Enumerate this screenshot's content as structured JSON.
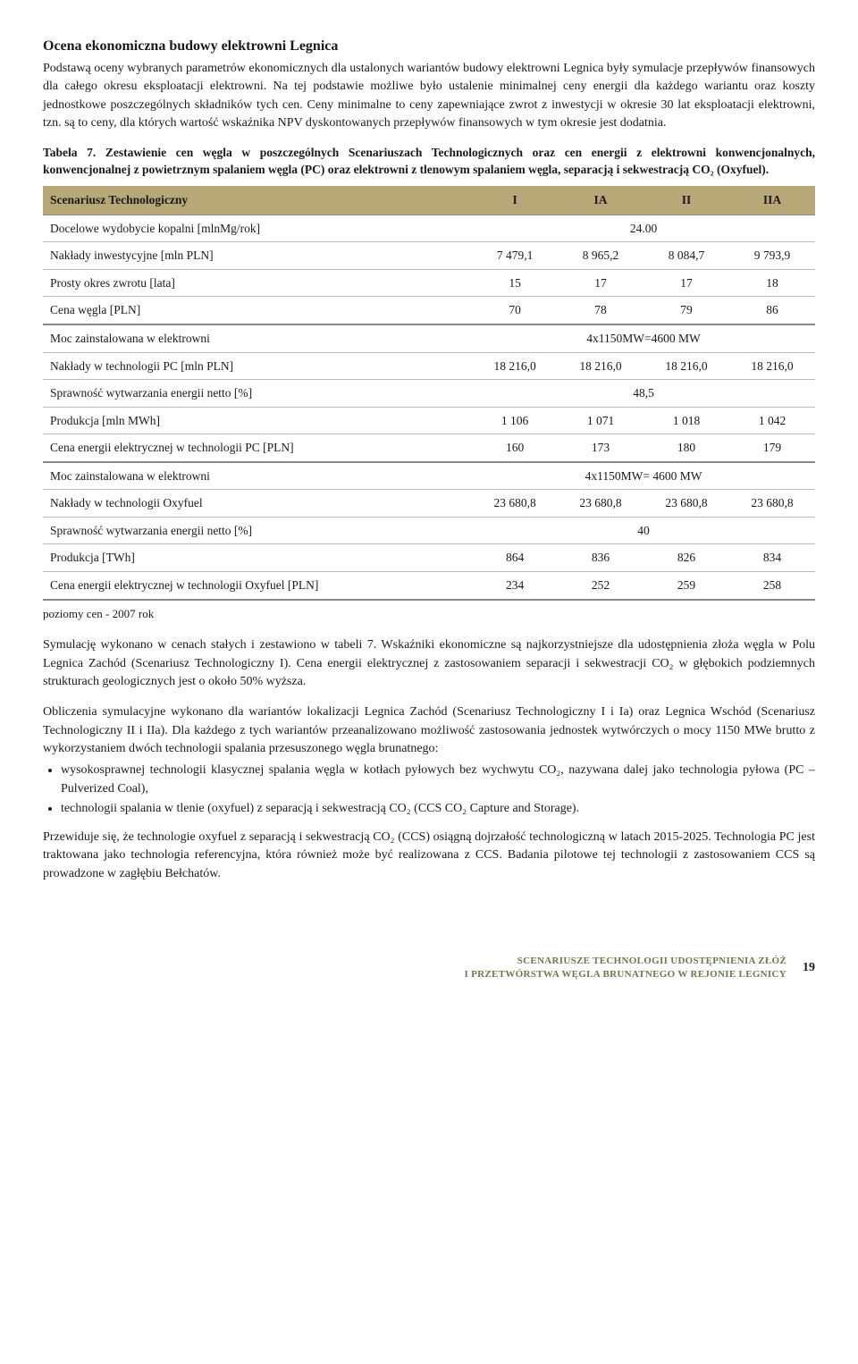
{
  "section": {
    "title": "Ocena ekonomiczna budowy elektrowni Legnica",
    "para1": "Podstawą oceny wybranych parametrów ekonomicznych dla ustalonych wariantów budowy elektrowni Legnica były symulacje przepływów finansowych dla całego okresu eksploatacji elektrowni. Na tej podstawie możliwe było ustalenie minimalnej ceny energii dla każdego wariantu oraz koszty jednostkowe poszczególnych składników tych cen. Ceny minimalne to ceny zapewniające zwrot z inwestycji w okresie 30 lat eksploatacji elektrowni, tzn. są to ceny, dla których wartość wskaźnika NPV dyskontowanych przepływów finansowych w tym okresie jest dodatnia."
  },
  "table7": {
    "caption": "Tabela 7. Zestawienie cen węgla w poszczególnych Scenariuszach Technologicznych oraz cen energii z elektrowni konwencjonalnych, konwencjonalnej z powietrznym spalaniem węgla (PC) oraz elektrowni z tlenowym spalaniem węgla, separacją i sekwestracją CO₂ (Oxyfuel).",
    "header_label": "Scenariusz Technologiczny",
    "cols": [
      "I",
      "IA",
      "II",
      "IIA"
    ],
    "header_bg": "#b8a878",
    "border_color": "#bbbbbb",
    "rows_block1": [
      {
        "label": "Docelowe wydobycie kopalni [mlnMg/rok]",
        "span": true,
        "value": "24.00"
      },
      {
        "label": "Nakłady inwestycyjne [mln PLN]",
        "cells": [
          "7 479,1",
          "8 965,2",
          "8 084,7",
          "9 793,9"
        ]
      },
      {
        "label": "Prosty okres zwrotu [lata]",
        "cells": [
          "15",
          "17",
          "17",
          "18"
        ]
      },
      {
        "label": "Cena węgla [PLN]",
        "cells": [
          "70",
          "78",
          "79",
          "86"
        ]
      }
    ],
    "rows_block2": [
      {
        "label": "Moc zainstalowana w elektrowni",
        "span": true,
        "value": "4x1150MW=4600 MW"
      },
      {
        "label": "Nakłady w technologii PC [mln PLN]",
        "cells": [
          "18 216,0",
          "18 216,0",
          "18 216,0",
          "18 216,0"
        ]
      },
      {
        "label": "Sprawność wytwarzania energii netto [%]",
        "span": true,
        "value": "48,5"
      },
      {
        "label": "Produkcja [mln MWh]",
        "cells": [
          "1 106",
          "1 071",
          "1 018",
          "1 042"
        ]
      },
      {
        "label": "Cena energii elektrycznej w technologii PC [PLN]",
        "cells": [
          "160",
          "173",
          "180",
          "179"
        ]
      }
    ],
    "rows_block3": [
      {
        "label": "Moc zainstalowana w elektrowni",
        "span": true,
        "value": "4x1150MW= 4600 MW"
      },
      {
        "label": "Nakłady w technologii Oxyfuel",
        "cells": [
          "23 680,8",
          "23 680,8",
          "23 680,8",
          "23 680,8"
        ]
      },
      {
        "label": "Sprawność wytwarzania energii netto [%]",
        "span": true,
        "value": "40"
      },
      {
        "label": "Produkcja [TWh]",
        "cells": [
          "864",
          "836",
          "826",
          "834"
        ]
      },
      {
        "label": "Cena energii elektrycznej w technologii Oxyfuel [PLN]",
        "cells": [
          "234",
          "252",
          "259",
          "258"
        ]
      }
    ],
    "note": "poziomy cen - 2007 rok"
  },
  "after": {
    "para2": "Symulację wykonano w cenach stałych i zestawiono w tabeli 7. Wskaźniki ekonomiczne są najkorzystniejsze dla udostępnienia złoża węgla w Polu Legnica Zachód (Scenariusz Technologiczny I). Cena energii elektrycznej z zastosowaniem separacji i sekwestracji CO₂ w głębokich podziemnych strukturach geologicznych jest o około 50% wyższa.",
    "para3": "Obliczenia symulacyjne wykonano dla wariantów lokalizacji Legnica Zachód (Scenariusz Technologiczny I i Ia) oraz Legnica Wschód (Scenariusz Technologiczny II i IIa). Dla każdego z tych wariantów przeanalizowano możliwość zastosowania jednostek wytwórczych o mocy 1150 MWe brutto z wykorzystaniem dwóch technologii spalania przesuszonego węgla brunatnego:",
    "bullets": [
      "wysokosprawnej technologii klasycznej spalania węgla w kotłach pyłowych bez wychwytu CO₂, nazywana dalej jako technologia pyłowa (PC –Pulverized Coal),",
      "technologii spalania w tlenie (oxyfuel) z separacją i sekwestracją CO₂ (CCS CO₂ Capture and Storage)."
    ],
    "para4": "Przewiduje się, że technologie oxyfuel z separacją i sekwestracją CO₂ (CCS) osiągną dojrzałość technologiczną w latach 2015-2025. Technologia PC jest traktowana jako technologia referencyjna, która również może być realizowana z CCS. Badania pilotowe tej technologii z zastosowaniem CCS są prowadzone w zagłębiu Bełchatów."
  },
  "footer": {
    "line1": "SCENARIUSZE TECHNOLOGII UDOSTĘPNIENIA ZŁÓŻ",
    "line2": "I PRZETWÓRSTWA WĘGLA BRUNATNEGO W REJONIE LEGNICY",
    "page": "19",
    "text_color": "#6a7a4a"
  }
}
